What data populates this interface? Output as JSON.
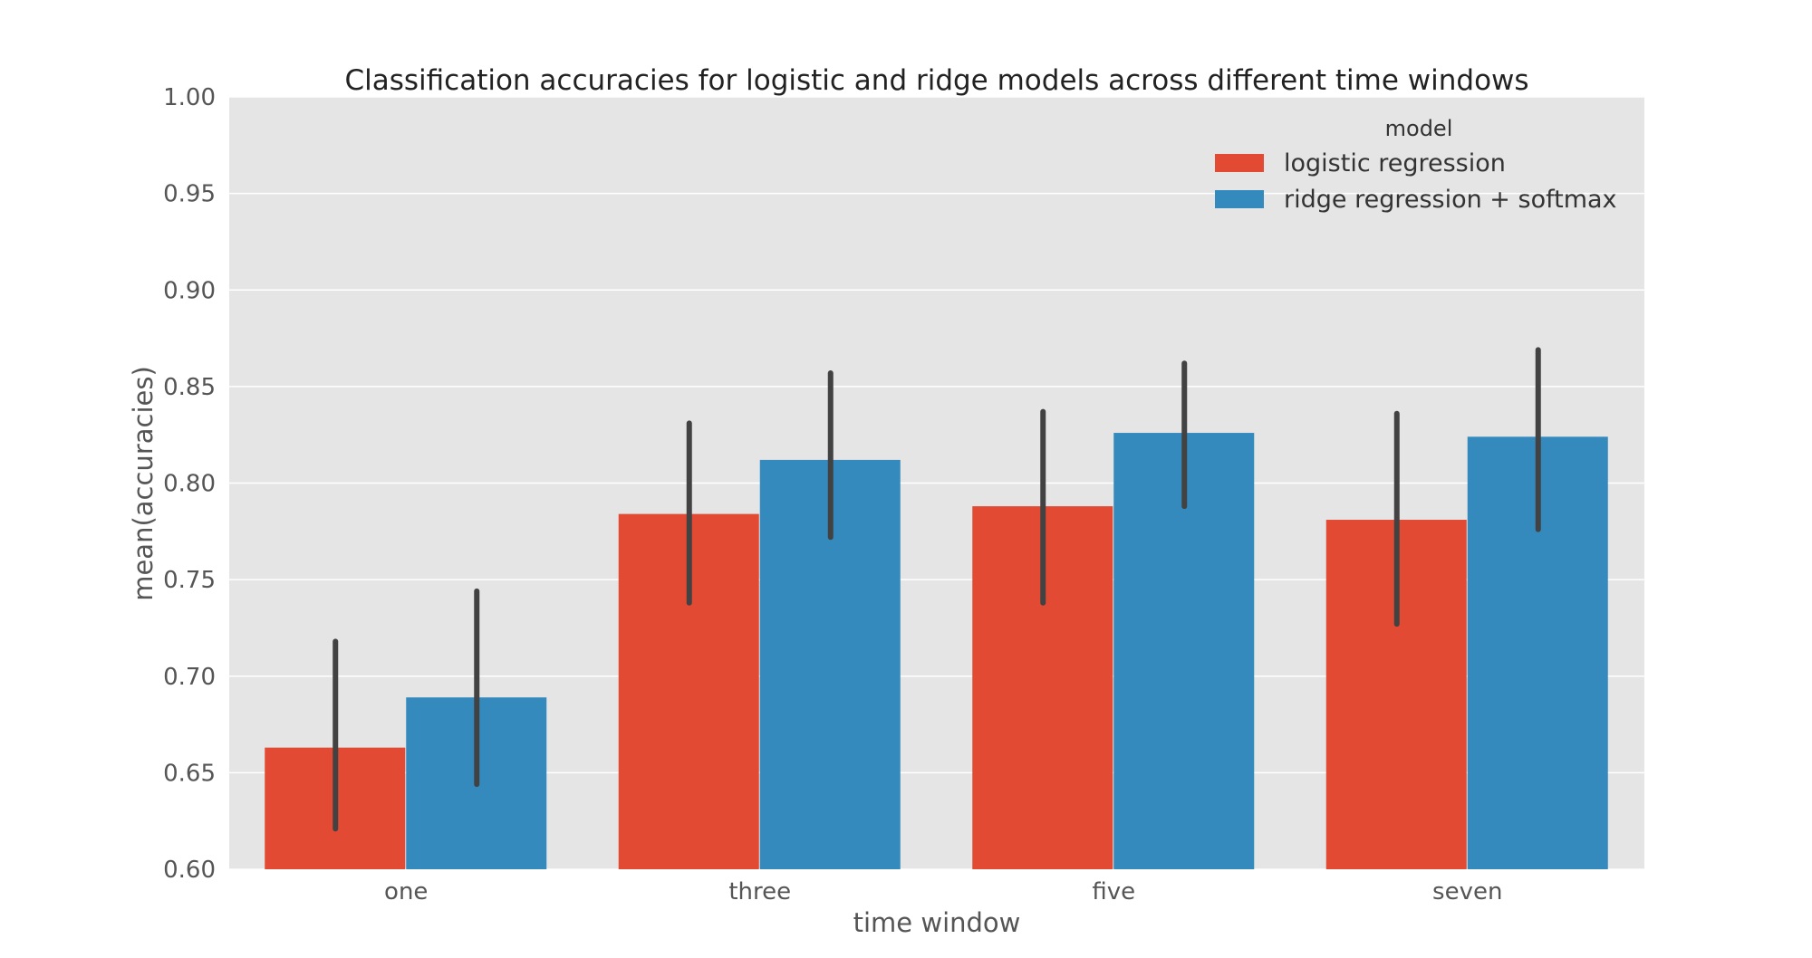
{
  "chart_data": {
    "type": "bar",
    "title": "Classification accuracies for logistic and ridge models across different time windows",
    "xlabel": "time window",
    "ylabel": "mean(accuracies)",
    "categories": [
      "one",
      "three",
      "five",
      "seven"
    ],
    "ylim": [
      0.6,
      1.0
    ],
    "yticks": [
      "0.60",
      "0.65",
      "0.70",
      "0.75",
      "0.80",
      "0.85",
      "0.90",
      "0.95",
      "1.00"
    ],
    "grid": true,
    "legend": {
      "title": "model",
      "position": "top-right"
    },
    "series": [
      {
        "name": "logistic regression",
        "color": "#E24A33",
        "values": [
          0.663,
          0.784,
          0.788,
          0.781
        ],
        "ci_low": [
          0.621,
          0.738,
          0.738,
          0.727
        ],
        "ci_high": [
          0.718,
          0.831,
          0.837,
          0.836
        ]
      },
      {
        "name": "ridge regression + softmax",
        "color": "#348ABD",
        "values": [
          0.689,
          0.812,
          0.826,
          0.824
        ],
        "ci_low": [
          0.644,
          0.772,
          0.788,
          0.776
        ],
        "ci_high": [
          0.744,
          0.857,
          0.862,
          0.869
        ]
      }
    ]
  }
}
